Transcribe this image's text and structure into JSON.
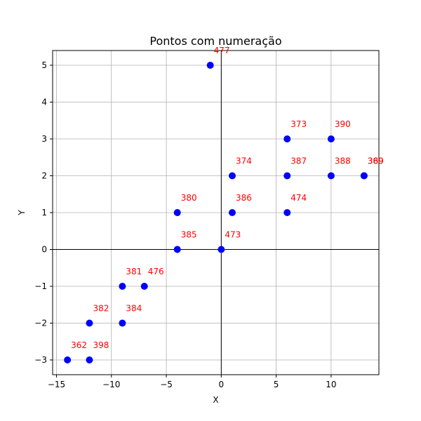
{
  "chart_data": {
    "type": "scatter",
    "title": "Pontos com numeração",
    "xlabel": "X",
    "ylabel": "Y",
    "xlim": [
      -15.35,
      14.35
    ],
    "ylim": [
      -3.4,
      5.4
    ],
    "xticks": [
      -15,
      -10,
      -5,
      0,
      5,
      10
    ],
    "yticks": [
      -3,
      -2,
      -1,
      0,
      1,
      2,
      3,
      4,
      5
    ],
    "xtick_labels": [
      "−15",
      "−10",
      "−5",
      "0",
      "5",
      "10"
    ],
    "ytick_labels": [
      "−3",
      "−2",
      "−1",
      "0",
      "1",
      "2",
      "3",
      "4",
      "5"
    ],
    "grid": true,
    "point_color": "#0000ff",
    "label_color": "#ff0000",
    "points": [
      {
        "x": -1,
        "y": 5,
        "label": "477"
      },
      {
        "x": 6,
        "y": 3,
        "label": "373"
      },
      {
        "x": 10,
        "y": 3,
        "label": "390"
      },
      {
        "x": 1,
        "y": 2,
        "label": "374"
      },
      {
        "x": 6,
        "y": 2,
        "label": "387"
      },
      {
        "x": 10,
        "y": 2,
        "label": "388"
      },
      {
        "x": 13,
        "y": 2,
        "label": "369"
      },
      {
        "x": 13,
        "y": 2,
        "label": "389"
      },
      {
        "x": -4,
        "y": 1,
        "label": "380"
      },
      {
        "x": 1,
        "y": 1,
        "label": "386"
      },
      {
        "x": 6,
        "y": 1,
        "label": "474"
      },
      {
        "x": -4,
        "y": 0,
        "label": "385"
      },
      {
        "x": 0,
        "y": 0,
        "label": "473"
      },
      {
        "x": -9,
        "y": -1,
        "label": "381"
      },
      {
        "x": -7,
        "y": -1,
        "label": "476"
      },
      {
        "x": -12,
        "y": -2,
        "label": "382"
      },
      {
        "x": -9,
        "y": -2,
        "label": "384"
      },
      {
        "x": -14,
        "y": -3,
        "label": "362"
      },
      {
        "x": -12,
        "y": -3,
        "label": "398"
      }
    ]
  }
}
